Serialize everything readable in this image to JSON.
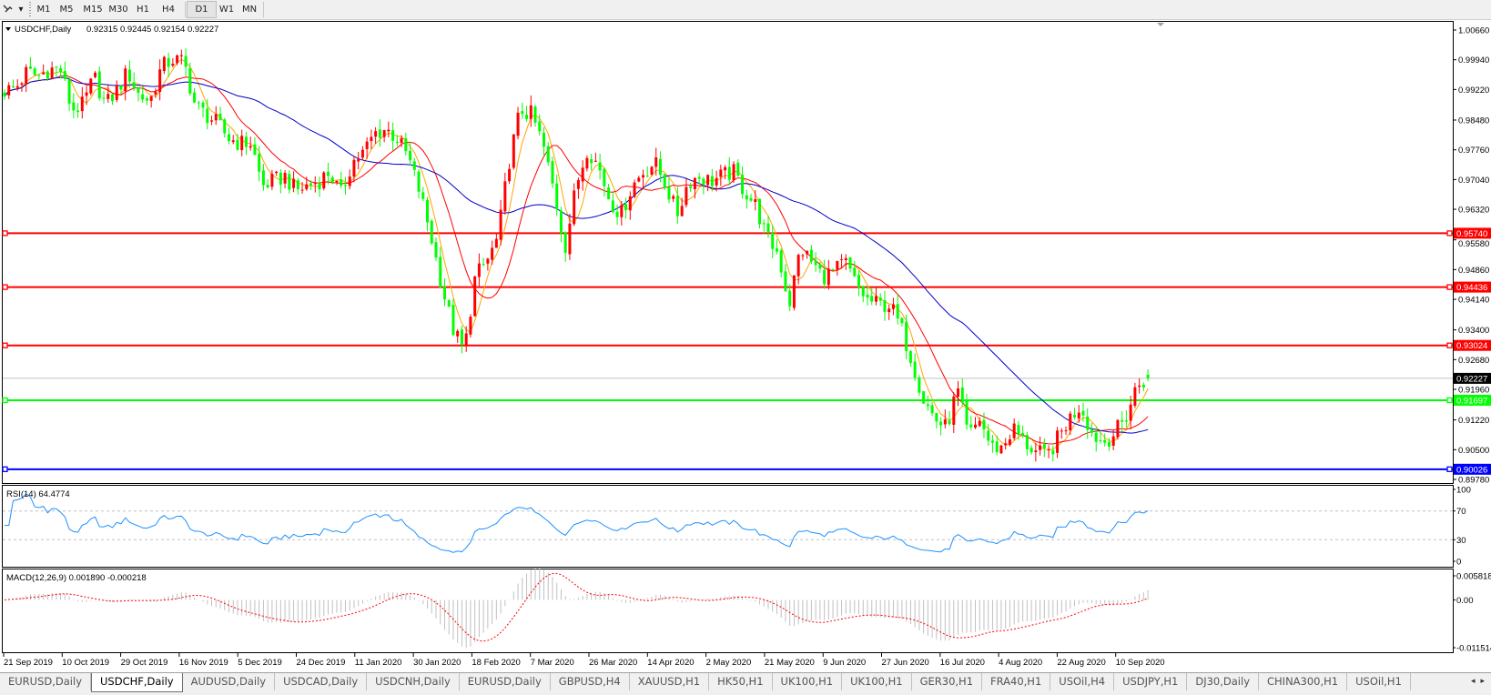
{
  "toolbar": {
    "drawing_tool_icon": "cursor-pen-icon",
    "timeframes": [
      "M1",
      "M5",
      "M15",
      "M30",
      "H1",
      "H4",
      "D1",
      "W1",
      "MN"
    ],
    "active_timeframe": "D1"
  },
  "chart_header": {
    "symbol": "USDCHF,Daily",
    "ohlc": "0.92315 0.92445 0.92154 0.92227"
  },
  "chart_data": {
    "type": "candlestick",
    "symbol": "USDCHF",
    "timeframe": "Daily",
    "open": 0.92315,
    "high": 0.92445,
    "low": 0.92154,
    "close": 0.92227,
    "ylim": [
      0.8978,
      1.0066
    ],
    "y_ticks": [
      "1.00660",
      "0.99940",
      "0.99220",
      "0.98480",
      "0.97760",
      "0.97040",
      "0.96320",
      "0.95580",
      "0.94860",
      "0.94140",
      "0.93400",
      "0.92680",
      "0.91960",
      "0.91220",
      "0.90500",
      "0.89780"
    ],
    "x_ticks": [
      "21 Sep 2019",
      "10 Oct 2019",
      "29 Oct 2019",
      "16 Nov 2019",
      "5 Dec 2019",
      "24 Dec 2019",
      "11 Jan 2020",
      "30 Jan 2020",
      "18 Feb 2020",
      "7 Mar 2020",
      "26 Mar 2020",
      "14 Apr 2020",
      "2 May 2020",
      "21 May 2020",
      "9 Jun 2020",
      "27 Jun 2020",
      "16 Jul 2020",
      "4 Aug 2020",
      "22 Aug 2020",
      "10 Sep 2020"
    ],
    "close_path": [
      0.9919,
      0.9926,
      0.9965,
      0.9953,
      0.9972,
      0.9969,
      0.9873,
      0.9884,
      0.9953,
      0.9884,
      0.9919,
      0.9965,
      0.9907,
      0.9896,
      0.9976,
      0.9995,
      0.9988,
      0.9884,
      0.9861,
      0.9838,
      0.9804,
      0.9792,
      0.9792,
      0.9689,
      0.97,
      0.9712,
      0.9677,
      0.9689,
      0.97,
      0.9723,
      0.9666,
      0.9746,
      0.9769,
      0.9815,
      0.9827,
      0.9804,
      0.9758,
      0.9677,
      0.9573,
      0.9447,
      0.9343,
      0.9286,
      0.947,
      0.9504,
      0.9562,
      0.9746,
      0.9873,
      0.9861,
      0.9792,
      0.9677,
      0.9539,
      0.9689,
      0.9781,
      0.9735,
      0.9654,
      0.9619,
      0.9689,
      0.9723,
      0.9746,
      0.9689,
      0.9619,
      0.97,
      0.9712,
      0.97,
      0.9712,
      0.9723,
      0.9677,
      0.9642,
      0.9562,
      0.9527,
      0.9401,
      0.9539,
      0.9504,
      0.947,
      0.9481,
      0.9504,
      0.9447,
      0.9412,
      0.9401,
      0.9401,
      0.9343,
      0.9263,
      0.9171,
      0.9125,
      0.9102,
      0.9194,
      0.9079,
      0.9125,
      0.9056,
      0.9056,
      0.9102,
      0.9067,
      0.9044,
      0.9033,
      0.9079,
      0.9125,
      0.9159,
      0.909,
      0.9067,
      0.909,
      0.9125,
      0.9205,
      0.92227
    ],
    "bull_color": "#ff0000",
    "bear_color": "#00ff00",
    "moving_average_colors": [
      "#ffa500",
      "#ff0000",
      "#0000c8"
    ],
    "horizontal_lines": [
      {
        "price": "0.95740",
        "color": "#ff0000"
      },
      {
        "price": "0.94436",
        "color": "#ff0000"
      },
      {
        "price": "0.93024",
        "color": "#ff0000"
      },
      {
        "price": "0.91697",
        "color": "#00ff00"
      },
      {
        "price": "0.90026",
        "color": "#0000ff"
      }
    ],
    "current_price": "0.92227",
    "grid": false
  },
  "rsi": {
    "label": "RSI(14) 64.4774",
    "levels": [
      70,
      30
    ],
    "ticks": [
      "100",
      "70",
      "30",
      "0"
    ],
    "color": "#1e90ff"
  },
  "macd": {
    "label": "MACD(12,26,9) 0.001890 -0.000218",
    "ticks": [
      "0.005818",
      "0.00",
      "-0.011514"
    ],
    "ylim": [
      -0.011514,
      0.005818
    ],
    "histogram_color": "#c0c0c0",
    "signal_color": "#ff0000"
  },
  "tabs": {
    "items": [
      "EURUSD,Daily",
      "USDCHF,Daily",
      "AUDUSD,Daily",
      "USDCAD,Daily",
      "USDCNH,Daily",
      "EURUSD,Daily",
      "GBPUSD,H4",
      "XAUUSD,H1",
      "HK50,H1",
      "UK100,H1",
      "UK100,H1",
      "GER30,H1",
      "FRA40,H1",
      "USOil,H4",
      "USDJPY,H1",
      "DJ30,Daily",
      "CHINA300,H1",
      "USOil,H1"
    ],
    "active_index": 1,
    "scroll_left": "◂",
    "scroll_right": "▸"
  }
}
